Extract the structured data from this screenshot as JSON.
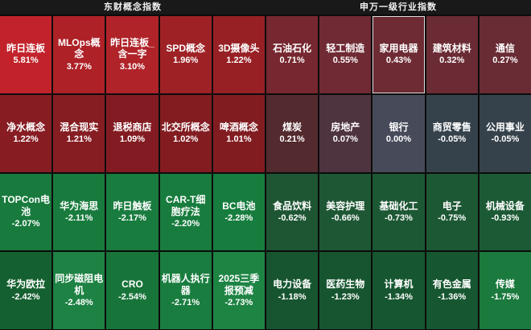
{
  "colors": {
    "background": "#0c0c0c",
    "header_bg": "#191919",
    "text": "#ffffff",
    "highlight_border": "#dcdcdc"
  },
  "headers": {
    "left": "东财概念指数",
    "right": "申万一级行业指数"
  },
  "chart_data": {
    "type": "heatmap",
    "rows": 4,
    "cols": 10,
    "groups": [
      {
        "title": "东财概念指数",
        "columns": [
          1,
          2,
          3,
          4,
          5
        ]
      },
      {
        "title": "申万一级行业指数",
        "columns": [
          6,
          7,
          8,
          9,
          10
        ]
      }
    ],
    "legend": "red = gain, green = loss, gray = flat; brightness scales with magnitude",
    "cells": [
      {
        "label": "昨日连板",
        "value": "5.81%",
        "change": 5.81,
        "color": "#c2232b",
        "group": "东财概念指数",
        "highlighted": false
      },
      {
        "label": "MLOps概念",
        "value": "3.77%",
        "change": 3.77,
        "color": "#ad2127",
        "group": "东财概念指数",
        "highlighted": false
      },
      {
        "label": "昨日连板_含一字",
        "value": "3.10%",
        "change": 3.1,
        "color": "#af2329",
        "group": "东财概念指数",
        "highlighted": false
      },
      {
        "label": "SPD概念",
        "value": "1.96%",
        "change": 1.96,
        "color": "#9e2126",
        "group": "东财概念指数",
        "highlighted": false
      },
      {
        "label": "3D摄像头",
        "value": "1.22%",
        "change": 1.22,
        "color": "#972025",
        "group": "东财概念指数",
        "highlighted": false
      },
      {
        "label": "石油石化",
        "value": "0.71%",
        "change": 0.71,
        "color": "#76272f",
        "group": "申万一级行业指数",
        "highlighted": false
      },
      {
        "label": "轻工制造",
        "value": "0.55%",
        "change": 0.55,
        "color": "#6f2a33",
        "group": "申万一级行业指数",
        "highlighted": false
      },
      {
        "label": "家用电器",
        "value": "0.43%",
        "change": 0.43,
        "color": "#6e2b34",
        "group": "申万一级行业指数",
        "highlighted": true
      },
      {
        "label": "建筑材料",
        "value": "0.32%",
        "change": 0.32,
        "color": "#6b2b34",
        "group": "申万一级行业指数",
        "highlighted": false
      },
      {
        "label": "通信",
        "value": "0.27%",
        "change": 0.27,
        "color": "#692c35",
        "group": "申万一级行业指数",
        "highlighted": false
      },
      {
        "label": "净水概念",
        "value": "1.22%",
        "change": 1.22,
        "color": "#871d23",
        "group": "东财概念指数",
        "highlighted": false
      },
      {
        "label": "混合现实",
        "value": "1.21%",
        "change": 1.21,
        "color": "#851d22",
        "group": "东财概念指数",
        "highlighted": false
      },
      {
        "label": "退税商店",
        "value": "1.09%",
        "change": 1.09,
        "color": "#831c22",
        "group": "东财概念指数",
        "highlighted": false
      },
      {
        "label": "北交所概念",
        "value": "1.02%",
        "change": 1.02,
        "color": "#821c21",
        "group": "东财概念指数",
        "highlighted": false
      },
      {
        "label": "啤酒概念",
        "value": "1.01%",
        "change": 1.01,
        "color": "#811c21",
        "group": "东财概念指数",
        "highlighted": false
      },
      {
        "label": "煤炭",
        "value": "0.21%",
        "change": 0.21,
        "color": "#532a2e",
        "group": "申万一级行业指数",
        "highlighted": false
      },
      {
        "label": "房地产",
        "value": "0.07%",
        "change": 0.07,
        "color": "#4e343f",
        "group": "申万一级行业指数",
        "highlighted": false
      },
      {
        "label": "银行",
        "value": "0.00%",
        "change": 0.0,
        "color": "#474a59",
        "group": "申万一级行业指数",
        "highlighted": false
      },
      {
        "label": "商贸零售",
        "value": "-0.05%",
        "change": -0.05,
        "color": "#36424b",
        "group": "申万一级行业指数",
        "highlighted": false
      },
      {
        "label": "公用事业",
        "value": "-0.05%",
        "change": -0.05,
        "color": "#36424b",
        "group": "申万一级行业指数",
        "highlighted": false
      },
      {
        "label": "TOPCon电池",
        "value": "-2.07%",
        "change": -2.07,
        "color": "#187a3d",
        "group": "东财概念指数",
        "highlighted": false
      },
      {
        "label": "华为海思",
        "value": "-2.11%",
        "change": -2.11,
        "color": "#187b3d",
        "group": "东财概念指数",
        "highlighted": false
      },
      {
        "label": "昨日触板",
        "value": "-2.17%",
        "change": -2.17,
        "color": "#187c3e",
        "group": "东财概念指数",
        "highlighted": false
      },
      {
        "label": "CAR-T细胞疗法",
        "value": "-2.20%",
        "change": -2.2,
        "color": "#187c3e",
        "group": "东财概念指数",
        "highlighted": false
      },
      {
        "label": "BC电池",
        "value": "-2.28%",
        "change": -2.28,
        "color": "#177d3e",
        "group": "东财概念指数",
        "highlighted": false
      },
      {
        "label": "食品饮料",
        "value": "-0.62%",
        "change": -0.62,
        "color": "#1e5634",
        "group": "申万一级行业指数",
        "highlighted": false
      },
      {
        "label": "美容护理",
        "value": "-0.66%",
        "change": -0.66,
        "color": "#1e5734",
        "group": "申万一级行业指数",
        "highlighted": false
      },
      {
        "label": "基础化工",
        "value": "-0.73%",
        "change": -0.73,
        "color": "#1d5834",
        "group": "申万一级行业指数",
        "highlighted": false
      },
      {
        "label": "电子",
        "value": "-0.75%",
        "change": -0.75,
        "color": "#1d5834",
        "group": "申万一级行业指数",
        "highlighted": false
      },
      {
        "label": "机械设备",
        "value": "-0.93%",
        "change": -0.93,
        "color": "#1c5a35",
        "group": "申万一级行业指数",
        "highlighted": false
      },
      {
        "label": "华为欧拉",
        "value": "-2.42%",
        "change": -2.42,
        "color": "#156030",
        "group": "东财概念指数",
        "highlighted": false
      },
      {
        "label": "同步磁阻电机",
        "value": "-2.48%",
        "change": -2.48,
        "color": "#1d8243",
        "group": "东财概念指数",
        "highlighted": false
      },
      {
        "label": "CRO",
        "value": "-2.54%",
        "change": -2.54,
        "color": "#18753a",
        "group": "东财概念指数",
        "highlighted": false
      },
      {
        "label": "机器人执行器",
        "value": "-2.71%",
        "change": -2.71,
        "color": "#197d3f",
        "group": "东财概念指数",
        "highlighted": false
      },
      {
        "label": "2025三季报预减",
        "value": "-2.73%",
        "change": -2.73,
        "color": "#1e8444",
        "group": "东财概念指数",
        "highlighted": false
      },
      {
        "label": "电力设备",
        "value": "-1.18%",
        "change": -1.18,
        "color": "#175530",
        "group": "申万一级行业指数",
        "highlighted": false
      },
      {
        "label": "医药生物",
        "value": "-1.23%",
        "change": -1.23,
        "color": "#175530",
        "group": "申万一级行业指数",
        "highlighted": false
      },
      {
        "label": "计算机",
        "value": "-1.34%",
        "change": -1.34,
        "color": "#165631",
        "group": "申万一级行业指数",
        "highlighted": false
      },
      {
        "label": "有色金属",
        "value": "-1.36%",
        "change": -1.36,
        "color": "#165631",
        "group": "申万一级行业指数",
        "highlighted": false
      },
      {
        "label": "传媒",
        "value": "-1.75%",
        "change": -1.75,
        "color": "#1b7a3e",
        "group": "申万一级行业指数",
        "highlighted": false
      }
    ]
  }
}
